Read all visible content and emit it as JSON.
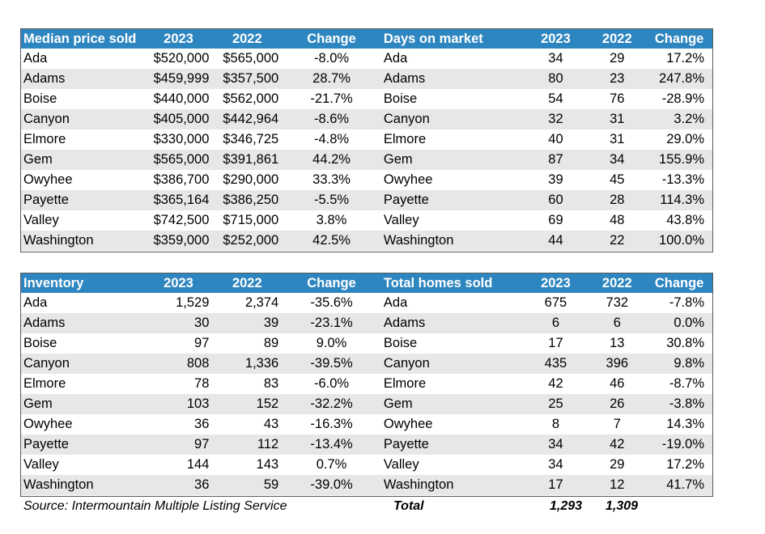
{
  "top": {
    "left": {
      "headers": [
        "Median price sold",
        "2023",
        "2022",
        "Change"
      ],
      "rows": [
        [
          "Ada",
          "$520,000",
          "$565,000",
          "-8.0%"
        ],
        [
          "Adams",
          "$459,999",
          "$357,500",
          "28.7%"
        ],
        [
          "Boise",
          "$440,000",
          "$562,000",
          "-21.7%"
        ],
        [
          "Canyon",
          "$405,000",
          "$442,964",
          "-8.6%"
        ],
        [
          "Elmore",
          "$330,000",
          "$346,725",
          "-4.8%"
        ],
        [
          "Gem",
          "$565,000",
          "$391,861",
          "44.2%"
        ],
        [
          "Owyhee",
          "$386,700",
          "$290,000",
          "33.3%"
        ],
        [
          "Payette",
          "$365,164",
          "$386,250",
          "-5.5%"
        ],
        [
          "Valley",
          "$742,500",
          "$715,000",
          "3.8%"
        ],
        [
          "Washington",
          "$359,000",
          "$252,000",
          "42.5%"
        ]
      ]
    },
    "right": {
      "headers": [
        "Days on market",
        "2023",
        "2022",
        "Change"
      ],
      "rows": [
        [
          "Ada",
          "34",
          "29",
          "17.2%"
        ],
        [
          "Adams",
          "80",
          "23",
          "247.8%"
        ],
        [
          "Boise",
          "54",
          "76",
          "-28.9%"
        ],
        [
          "Canyon",
          "32",
          "31",
          "3.2%"
        ],
        [
          "Elmore",
          "40",
          "31",
          "29.0%"
        ],
        [
          "Gem",
          "87",
          "34",
          "155.9%"
        ],
        [
          "Owyhee",
          "39",
          "45",
          "-13.3%"
        ],
        [
          "Payette",
          "60",
          "28",
          "114.3%"
        ],
        [
          "Valley",
          "69",
          "48",
          "43.8%"
        ],
        [
          "Washington",
          "44",
          "22",
          "100.0%"
        ]
      ]
    }
  },
  "bottom": {
    "left": {
      "headers": [
        "Inventory",
        "2023",
        "2022",
        "Change"
      ],
      "rows": [
        [
          "Ada",
          "1,529",
          "2,374",
          "-35.6%"
        ],
        [
          "Adams",
          "30",
          "39",
          "-23.1%"
        ],
        [
          "Boise",
          "97",
          "89",
          "9.0%"
        ],
        [
          "Canyon",
          "808",
          "1,336",
          "-39.5%"
        ],
        [
          "Elmore",
          "78",
          "83",
          "-6.0%"
        ],
        [
          "Gem",
          "103",
          "152",
          "-32.2%"
        ],
        [
          "Owyhee",
          "36",
          "43",
          "-16.3%"
        ],
        [
          "Payette",
          "97",
          "112",
          "-13.4%"
        ],
        [
          "Valley",
          "144",
          "143",
          "0.7%"
        ],
        [
          "Washington",
          "36",
          "59",
          "-39.0%"
        ]
      ]
    },
    "right": {
      "headers": [
        "Total homes sold",
        "2023",
        "2022",
        "Change"
      ],
      "rows": [
        [
          "Ada",
          "675",
          "732",
          "-7.8%"
        ],
        [
          "Adams",
          "6",
          "6",
          "0.0%"
        ],
        [
          "Boise",
          "17",
          "13",
          "30.8%"
        ],
        [
          "Canyon",
          "435",
          "396",
          "9.8%"
        ],
        [
          "Elmore",
          "42",
          "46",
          "-8.7%"
        ],
        [
          "Gem",
          "25",
          "26",
          "-3.8%"
        ],
        [
          "Owyhee",
          "8",
          "7",
          "14.3%"
        ],
        [
          "Payette",
          "34",
          "42",
          "-19.0%"
        ],
        [
          "Valley",
          "34",
          "29",
          "17.2%"
        ],
        [
          "Washington",
          "17",
          "12",
          "41.7%"
        ]
      ]
    }
  },
  "footer": {
    "source": "Source: Intermountain Multiple Listing Service",
    "total_label": "Total",
    "total_2023": "1,293",
    "total_2022": "1,309"
  },
  "colors": {
    "header_bg": "#2e86c1",
    "shade_bg": "#e7e7e7"
  }
}
